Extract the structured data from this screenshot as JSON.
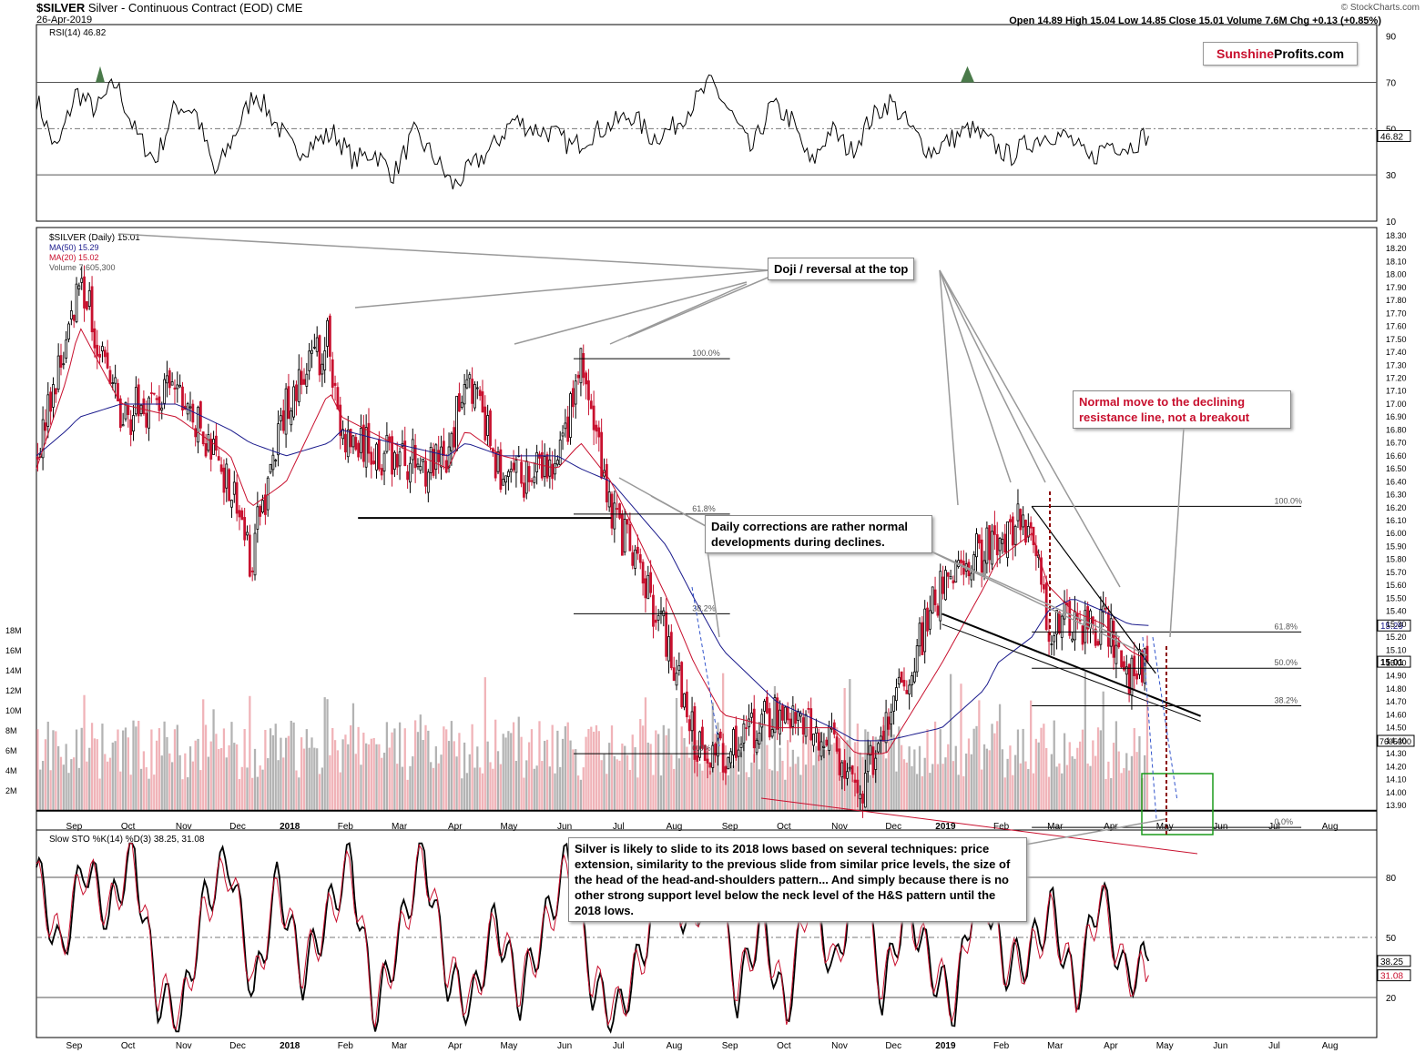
{
  "header": {
    "symbol": "$SILVER",
    "description": "Silver - Continuous Contract (EOD)",
    "exchange": "CME",
    "date": "26-Apr-2019",
    "quote": "Open 14.89  High 15.04  Low 14.85  Close 15.01  Volume 7.6M  Chg +0.13 (+0.85%)",
    "credit": "© StockCharts.com",
    "brand_a": "Sunshine",
    "brand_b": "Profits.com"
  },
  "annotations": {
    "doji": "Doji / reversal at the top",
    "resistance": "Normal move to the declining resistance line, not a breakout",
    "corrections": "Daily corrections are rather normal developments during declines.",
    "forecast": "Silver is likely to slide to its 2018 lows based on several techniques: price extension, similarity to the previous slide from similar price levels, the size of the head of the head-and-shoulders pattern... And simply because there is no other strong support level below the neck level of the H&S pattern until the 2018 lows."
  },
  "colors": {
    "up": "#000000",
    "down": "#c8102e",
    "ma50": "#1a1a8c",
    "ma20": "#c8102e",
    "vol_up": "#b3b3b3",
    "vol_down": "#f0b3b8",
    "rsi_fill": "#4a7a4a",
    "box": "#1a9a1a"
  },
  "chart_data": [
    {
      "type": "line",
      "title": "RSI(14) 46.82",
      "series": [
        {
          "name": "RSI(14)",
          "values": [
            63,
            40,
            66,
            58,
            70,
            48,
            36,
            60,
            58,
            30,
            48,
            66,
            53,
            40,
            44,
            48,
            36,
            40,
            30,
            48,
            38,
            25,
            34,
            42,
            54,
            50,
            48,
            42,
            48,
            52,
            56,
            46,
            50,
            60,
            70,
            56,
            40,
            60,
            54,
            34,
            50,
            40,
            54,
            62,
            50,
            40,
            45,
            50,
            44,
            38,
            44,
            48,
            46,
            36,
            44,
            42,
            48
          ]
        }
      ],
      "ylim": [
        10,
        95
      ],
      "ticks": [
        90,
        70,
        50,
        30,
        10
      ],
      "reference_lines": [
        70,
        50,
        30
      ],
      "current": "46.82"
    },
    {
      "type": "candlestick",
      "title": "$SILVER (Daily) 15.01",
      "legend": [
        "MA(50) 15.29",
        "MA(20) 15.02",
        "Volume 7,605,300"
      ],
      "x": [
        "2017-08-15",
        "2017-09-01",
        "2017-09-08",
        "2017-10-01",
        "2017-11-01",
        "2017-12-01",
        "2017-12-12",
        "2018-01-01",
        "2018-01-25",
        "2018-02-01",
        "2018-03-01",
        "2018-04-01",
        "2018-04-11",
        "2018-05-01",
        "2018-06-01",
        "2018-06-14",
        "2018-07-01",
        "2018-08-01",
        "2018-08-16",
        "2018-09-01",
        "2018-10-01",
        "2018-11-01",
        "2018-11-14",
        "2018-12-01",
        "2019-01-01",
        "2019-01-25",
        "2019-02-01",
        "2019-02-20",
        "2019-03-01",
        "2019-03-15",
        "2019-04-01",
        "2019-04-15",
        "2019-04-26"
      ],
      "close": [
        16.6,
        17.5,
        18.0,
        16.9,
        17.1,
        16.4,
        15.8,
        17.0,
        17.5,
        16.7,
        16.6,
        16.5,
        17.3,
        16.4,
        16.5,
        17.3,
        16.2,
        15.2,
        14.4,
        14.3,
        14.6,
        14.4,
        13.9,
        14.5,
        15.6,
        15.9,
        16.0,
        16.1,
        15.3,
        15.3,
        15.3,
        14.9,
        15.01
      ],
      "ma50": [
        16.6,
        16.8,
        16.9,
        17.0,
        17.0,
        16.8,
        16.7,
        16.6,
        16.7,
        16.8,
        16.7,
        16.6,
        16.7,
        16.6,
        16.6,
        16.5,
        16.4,
        15.9,
        15.5,
        15.1,
        14.7,
        14.5,
        14.4,
        14.4,
        14.5,
        14.8,
        15.0,
        15.2,
        15.4,
        15.5,
        15.4,
        15.3,
        15.29
      ],
      "ma20": [
        16.5,
        17.2,
        17.6,
        17.0,
        16.9,
        16.6,
        16.2,
        16.4,
        17.1,
        16.9,
        16.7,
        16.5,
        16.8,
        16.6,
        16.5,
        16.7,
        16.4,
        15.5,
        15.0,
        14.6,
        14.5,
        14.5,
        14.3,
        14.3,
        15.0,
        15.6,
        15.8,
        16.0,
        15.6,
        15.4,
        15.3,
        15.1,
        15.02
      ],
      "fibonacci_left": [
        {
          "label": "100.0%",
          "value": 17.35
        },
        {
          "label": "61.8%",
          "value": 16.15
        },
        {
          "label": "38.2%",
          "value": 15.38
        },
        {
          "label": "0.0%",
          "value": 14.3
        }
      ],
      "fibonacci_right": [
        {
          "label": "100.0%",
          "value": 16.21
        },
        {
          "label": "61.8%",
          "value": 15.24
        },
        {
          "label": "50.0%",
          "value": 14.96
        },
        {
          "label": "38.2%",
          "value": 14.67
        },
        {
          "label": "0.0%",
          "value": 13.73
        }
      ],
      "support_2018_low": 13.86,
      "ylim": [
        13.8,
        18.35
      ],
      "ticks": [
        18.3,
        18.2,
        18.1,
        18.0,
        17.9,
        17.8,
        17.7,
        17.6,
        17.5,
        17.4,
        17.3,
        17.2,
        17.1,
        17.0,
        16.9,
        16.8,
        16.7,
        16.6,
        16.5,
        16.4,
        16.3,
        16.2,
        16.1,
        16.0,
        15.9,
        15.8,
        15.7,
        15.6,
        15.5,
        15.4,
        15.3,
        15.2,
        15.1,
        15.0,
        14.9,
        14.8,
        14.7,
        14.6,
        14.5,
        14.4,
        14.3,
        14.2,
        14.1,
        14.0,
        13.9
      ],
      "current_labels": [
        "15.29",
        "15.01",
        "7605300"
      ],
      "volume_ticks": [
        "18M",
        "16M",
        "14M",
        "12M",
        "10M",
        "8M",
        "6M",
        "4M",
        "2M"
      ],
      "x_labels": [
        "Sep",
        "Oct",
        "Nov",
        "Dec",
        "2018",
        "Feb",
        "Mar",
        "Apr",
        "May",
        "Jun",
        "Jul",
        "Aug",
        "Sep",
        "Oct",
        "Nov",
        "Dec",
        "2019",
        "Feb",
        "Mar",
        "Apr",
        "May",
        "Jun",
        "Jul",
        "Aug"
      ]
    },
    {
      "type": "line",
      "title": "Slow STO %K(14) %D(3) 38.25, 31.08",
      "series": [
        {
          "name": "%K(14)",
          "values": [
            85,
            40,
            88,
            60,
            95,
            20,
            10,
            70,
            90,
            20,
            80,
            30,
            60,
            90,
            10,
            50,
            95,
            30,
            15,
            60,
            20,
            55,
            90,
            25,
            10,
            40,
            88,
            55,
            85,
            20,
            60,
            10,
            80,
            30,
            90,
            20,
            70,
            35,
            15,
            90,
            35,
            40,
            65,
            20,
            75,
            30,
            38
          ]
        },
        {
          "name": "%D(3)",
          "values": [
            80,
            45,
            85,
            62,
            92,
            24,
            12,
            66,
            86,
            24,
            76,
            34,
            58,
            86,
            14,
            48,
            92,
            34,
            17,
            58,
            24,
            52,
            86,
            28,
            13,
            38,
            84,
            58,
            82,
            24,
            58,
            14,
            76,
            33,
            86,
            23,
            67,
            36,
            17,
            86,
            37,
            38,
            62,
            23,
            71,
            32,
            31
          ]
        }
      ],
      "ylim": [
        0,
        100
      ],
      "ticks": [
        80,
        50,
        20
      ],
      "current": [
        "38.25",
        "31.08"
      ]
    }
  ]
}
